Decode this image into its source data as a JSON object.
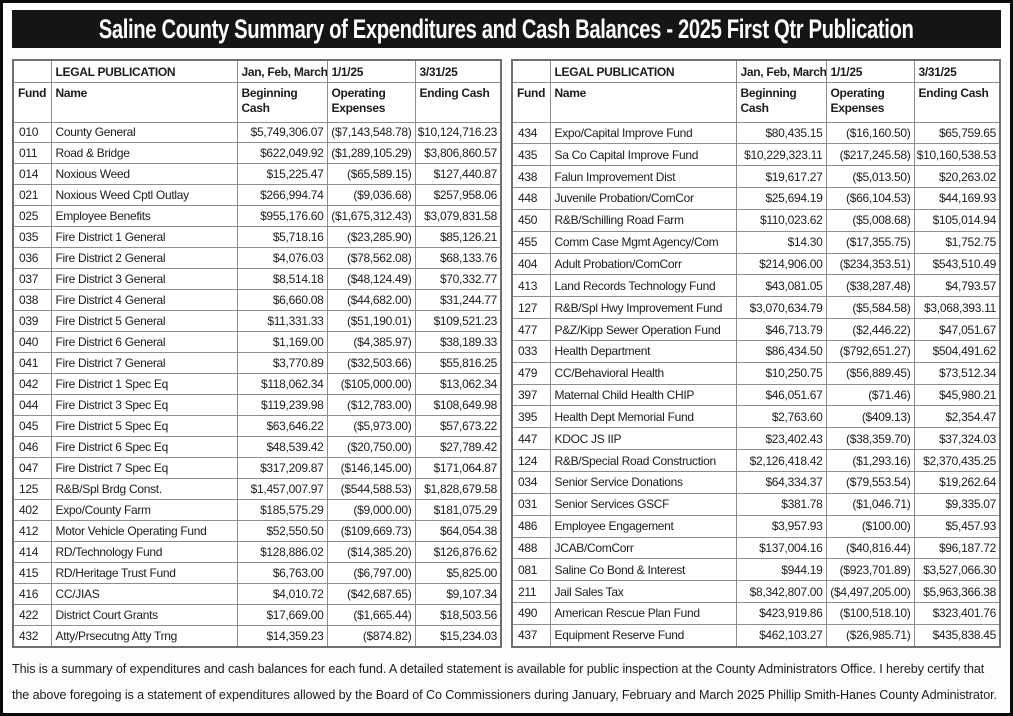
{
  "title": "Saline County Summary of Expenditures and Cash Balances - 2025 First Qtr Publication",
  "colors": {
    "title_bar_bg": "#151515",
    "title_text": "#ffffff",
    "frame_color": "#0a0a0a",
    "table_outer_border": "#6f6f6f",
    "table_border": "#8d8d8d",
    "text_color": "#1c1c1c",
    "page_bg": "#fdfdfd"
  },
  "table_header": {
    "row1": [
      "",
      "LEGAL PUBLICATION",
      "Jan, Feb, March",
      "1/1/25",
      "3/31/25"
    ],
    "row2": [
      "Fund",
      "Name",
      "Beginning Cash",
      "Operating\nExpenses",
      "Ending Cash"
    ]
  },
  "left_table_rows": [
    [
      "010",
      "County General",
      "$5,749,306.07",
      "($7,143,548.78)",
      "$10,124,716.23"
    ],
    [
      "011",
      "Road & Bridge",
      "$622,049.92",
      "($1,289,105.29)",
      "$3,806,860.57"
    ],
    [
      "014",
      "Noxious Weed",
      "$15,225.47",
      "($65,589.15)",
      "$127,440.87"
    ],
    [
      "021",
      "Noxious Weed Cptl Outlay",
      "$266,994.74",
      "($9,036.68)",
      "$257,958.06"
    ],
    [
      "025",
      "Employee Benefits",
      "$955,176.60",
      "($1,675,312.43)",
      "$3,079,831.58"
    ],
    [
      "035",
      "Fire District 1 General",
      "$5,718.16",
      "($23,285.90)",
      "$85,126.21"
    ],
    [
      "036",
      "Fire District 2 General",
      "$4,076.03",
      "($78,562.08)",
      "$68,133.76"
    ],
    [
      "037",
      "Fire District 3 General",
      "$8,514.18",
      "($48,124.49)",
      "$70,332.77"
    ],
    [
      "038",
      "Fire District 4 General",
      "$6,660.08",
      "($44,682.00)",
      "$31,244.77"
    ],
    [
      "039",
      "Fire District 5 General",
      "$11,331.33",
      "($51,190.01)",
      "$109,521.23"
    ],
    [
      "040",
      "Fire District 6 General",
      "$1,169.00",
      "($4,385.97)",
      "$38,189.33"
    ],
    [
      "041",
      "Fire District 7 General",
      "$3,770.89",
      "($32,503.66)",
      "$55,816.25"
    ],
    [
      "042",
      "Fire District 1 Spec Eq",
      "$118,062.34",
      "($105,000.00)",
      "$13,062.34"
    ],
    [
      "044",
      "Fire District 3 Spec Eq",
      "$119,239.98",
      "($12,783.00)",
      "$108,649.98"
    ],
    [
      "045",
      "Fire District 5 Spec Eq",
      "$63,646.22",
      "($5,973.00)",
      "$57,673.22"
    ],
    [
      "046",
      "Fire District 6 Spec Eq",
      "$48,539.42",
      "($20,750.00)",
      "$27,789.42"
    ],
    [
      "047",
      "Fire District 7 Spec Eq",
      "$317,209.87",
      "($146,145.00)",
      "$171,064.87"
    ],
    [
      "125",
      "R&B/Spl Brdg Const.",
      "$1,457,007.97",
      "($544,588.53)",
      "$1,828,679.58"
    ],
    [
      "402",
      "Expo/County Farm",
      "$185,575.29",
      "($9,000.00)",
      "$181,075.29"
    ],
    [
      "412",
      "Motor Vehicle Operating Fund",
      "$52,550.50",
      "($109,669.73)",
      "$64,054.38"
    ],
    [
      "414",
      "RD/Technology Fund",
      "$128,886.02",
      "($14,385.20)",
      "$126,876.62"
    ],
    [
      "415",
      "RD/Heritage Trust Fund",
      "$6,763.00",
      "($6,797.00)",
      "$5,825.00"
    ],
    [
      "416",
      "CC/JIAS",
      "$4,010.72",
      "($42,687.65)",
      "$9,107.34"
    ],
    [
      "422",
      "District Court Grants",
      "$17,669.00",
      "($1,665.44)",
      "$18,503.56"
    ],
    [
      "432",
      "Atty/Prsecutng Atty Trng",
      "$14,359.23",
      "($874.82)",
      "$15,234.03"
    ]
  ],
  "right_table_rows": [
    [
      "434",
      "Expo/Capital Improve Fund",
      "$80,435.15",
      "($16,160.50)",
      "$65,759.65"
    ],
    [
      "435",
      "Sa Co Capital Improve Fund",
      "$10,229,323.11",
      "($217,245.58)",
      "$10,160,538.53"
    ],
    [
      "438",
      "Falun Improvement Dist",
      "$19,617.27",
      "($5,013.50)",
      "$20,263.02"
    ],
    [
      "448",
      "Juvenile Probation/ComCor",
      "$25,694.19",
      "($66,104.53)",
      "$44,169.93"
    ],
    [
      "450",
      "R&B/Schilling Road Farm",
      "$110,023.62",
      "($5,008.68)",
      "$105,014.94"
    ],
    [
      "455",
      "Comm Case Mgmt Agency/Com",
      "$14.30",
      "($17,355.75)",
      "$1,752.75"
    ],
    [
      "404",
      "Adult Probation/ComCorr",
      "$214,906.00",
      "($234,353.51)",
      "$543,510.49"
    ],
    [
      "413",
      "Land Records Technology Fund",
      "$43,081.05",
      "($38,287.48)",
      "$4,793.57"
    ],
    [
      "127",
      "R&B/Spl Hwy Improvement Fund",
      "$3,070,634.79",
      "($5,584.58)",
      "$3,068,393.11"
    ],
    [
      "477",
      "P&Z/Kipp Sewer Operation Fund",
      "$46,713.79",
      "($2,446.22)",
      "$47,051.67"
    ],
    [
      "033",
      "Health Department",
      "$86,434.50",
      "($792,651.27)",
      "$504,491.62"
    ],
    [
      "479",
      "CC/Behavioral Health",
      "$10,250.75",
      "($56,889.45)",
      "$73,512.34"
    ],
    [
      "397",
      "Maternal Child Health CHIP",
      "$46,051.67",
      "($71.46)",
      "$45,980.21"
    ],
    [
      "395",
      "Health Dept Memorial Fund",
      "$2,763.60",
      "($409.13)",
      "$2,354.47"
    ],
    [
      "447",
      "KDOC JS IIP",
      "$23,402.43",
      "($38,359.70)",
      "$37,324.03"
    ],
    [
      "124",
      "R&B/Special Road Construction",
      "$2,126,418.42",
      "($1,293.16)",
      "$2,370,435.25"
    ],
    [
      "034",
      "Senior Service Donations",
      "$64,334.37",
      "($79,553.54)",
      "$19,262.64"
    ],
    [
      "031",
      "Senior Services GSCF",
      "$381.78",
      "($1,046.71)",
      "$9,335.07"
    ],
    [
      "486",
      "Employee Engagement",
      "$3,957.93",
      "($100.00)",
      "$5,457.93"
    ],
    [
      "488",
      "JCAB/ComCorr",
      "$137,004.16",
      "($40,816.44)",
      "$96,187.72"
    ],
    [
      "081",
      "Saline Co Bond & Interest",
      "$944.19",
      "($923,701.89)",
      "$3,527,066.30"
    ],
    [
      "211",
      "Jail Sales Tax",
      "$8,342,807.00",
      "($4,497,205.00)",
      "$5,963,366.38"
    ],
    [
      "490",
      "American Rescue Plan Fund",
      "$423,919.86",
      "($100,518.10)",
      "$323,401.76"
    ],
    [
      "437",
      "Equipment Reserve Fund",
      "$462,103.27",
      "($26,985.71)",
      "$435,838.45"
    ]
  ],
  "footer_text": "This is a summary of expenditures and cash balances for each fund.  A detailed statement is available for public inspection at the County Administrators Office. I hereby certify that the above foregoing is a statement of expenditures allowed by the Board of Co Commissioners during January, February and March 2025 Phillip Smith-Hanes County Administrator."
}
